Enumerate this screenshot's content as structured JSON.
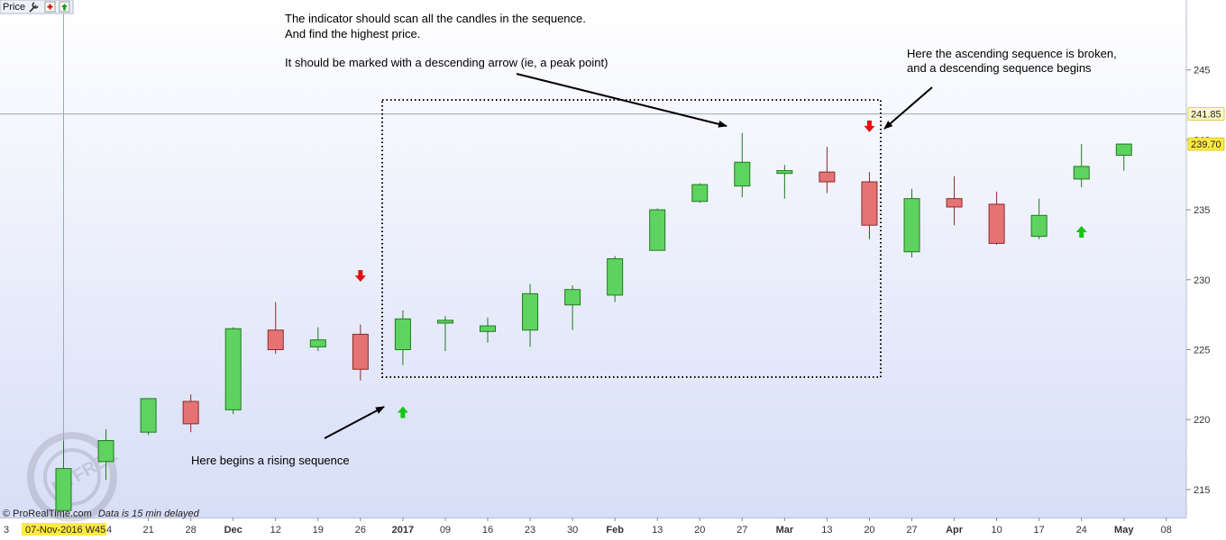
{
  "toolbar": {
    "label": "Price",
    "icons": [
      "wrench-icon",
      "add-red-icon",
      "add-green-icon"
    ]
  },
  "footer": {
    "copyright": "© ProRealTime.com",
    "delay_note": "Data is 15 min delayed",
    "crosshair_x_label": "07-Nov-2016 W45",
    "left_edge_tick": "3",
    "right_edge_tick": "4"
  },
  "chart_data": {
    "type": "candlestick",
    "ylim": [
      213,
      250
    ],
    "y_ticks": [
      215,
      220,
      225,
      230,
      235,
      240,
      245
    ],
    "x_ticks": [
      "21",
      "28",
      "Dec",
      "12",
      "19",
      "26",
      "2017",
      "09",
      "16",
      "23",
      "30",
      "Feb",
      "13",
      "20",
      "27",
      "Mar",
      "13",
      "20",
      "27",
      "Apr",
      "10",
      "17",
      "24",
      "May",
      "08"
    ],
    "bold_x_ticks": [
      "Dec",
      "2017",
      "Feb",
      "Mar",
      "Apr",
      "May"
    ],
    "price_labels": [
      {
        "value": 241.85,
        "text": "241.85",
        "color": "#fff9c4"
      },
      {
        "value": 239.7,
        "text": "239.70",
        "color": "#ffeb3b"
      }
    ],
    "crosshair": {
      "y": 241.85
    },
    "candles": [
      {
        "week": "07-Nov",
        "open": 213.5,
        "high": 218.5,
        "low": 213.0,
        "close": 216.5,
        "dir": "up"
      },
      {
        "week": "14-Nov",
        "open": 217.0,
        "high": 219.3,
        "low": 215.7,
        "close": 218.5,
        "dir": "up"
      },
      {
        "week": "21-Nov",
        "open": 219.1,
        "high": 221.5,
        "low": 218.9,
        "close": 221.5,
        "dir": "up"
      },
      {
        "week": "28-Nov",
        "open": 221.3,
        "high": 221.8,
        "low": 219.1,
        "close": 219.7,
        "dir": "down"
      },
      {
        "week": "05-Dec",
        "open": 220.7,
        "high": 226.6,
        "low": 220.4,
        "close": 226.5,
        "dir": "up"
      },
      {
        "week": "12-Dec",
        "open": 226.4,
        "high": 228.4,
        "low": 224.7,
        "close": 225.0,
        "dir": "down"
      },
      {
        "week": "19-Dec",
        "open": 225.2,
        "high": 226.6,
        "low": 224.9,
        "close": 225.7,
        "dir": "up"
      },
      {
        "week": "26-Dec",
        "open": 226.1,
        "high": 226.8,
        "low": 222.8,
        "close": 223.6,
        "dir": "down"
      },
      {
        "week": "02-Jan",
        "open": 225.0,
        "high": 227.8,
        "low": 223.9,
        "close": 227.2,
        "dir": "up"
      },
      {
        "week": "09-Jan",
        "open": 226.9,
        "high": 227.4,
        "low": 224.9,
        "close": 227.1,
        "dir": "up"
      },
      {
        "week": "16-Jan",
        "open": 226.3,
        "high": 227.3,
        "low": 225.5,
        "close": 226.7,
        "dir": "up"
      },
      {
        "week": "23-Jan",
        "open": 226.4,
        "high": 229.7,
        "low": 225.2,
        "close": 229.0,
        "dir": "up"
      },
      {
        "week": "30-Jan",
        "open": 228.2,
        "high": 229.6,
        "low": 226.4,
        "close": 229.3,
        "dir": "up"
      },
      {
        "week": "06-Feb",
        "open": 228.9,
        "high": 231.7,
        "low": 228.4,
        "close": 231.5,
        "dir": "up"
      },
      {
        "week": "13-Feb",
        "open": 232.1,
        "high": 235.1,
        "low": 232.1,
        "close": 235.0,
        "dir": "up"
      },
      {
        "week": "20-Feb",
        "open": 235.6,
        "high": 236.9,
        "low": 235.5,
        "close": 236.8,
        "dir": "up"
      },
      {
        "week": "27-Feb",
        "open": 236.7,
        "high": 240.5,
        "low": 235.9,
        "close": 238.4,
        "dir": "up"
      },
      {
        "week": "06-Mar",
        "open": 237.6,
        "high": 238.2,
        "low": 235.8,
        "close": 237.8,
        "dir": "up"
      },
      {
        "week": "13-Mar",
        "open": 237.7,
        "high": 239.5,
        "low": 236.2,
        "close": 237.0,
        "dir": "down"
      },
      {
        "week": "20-Mar",
        "open": 237.0,
        "high": 237.7,
        "low": 232.9,
        "close": 233.9,
        "dir": "down"
      },
      {
        "week": "27-Mar",
        "open": 232.0,
        "high": 236.5,
        "low": 231.6,
        "close": 235.8,
        "dir": "up"
      },
      {
        "week": "03-Apr",
        "open": 235.8,
        "high": 237.4,
        "low": 233.9,
        "close": 235.2,
        "dir": "down"
      },
      {
        "week": "10-Apr",
        "open": 235.4,
        "high": 236.3,
        "low": 232.5,
        "close": 232.6,
        "dir": "down"
      },
      {
        "week": "17-Apr",
        "open": 233.1,
        "high": 235.8,
        "low": 232.9,
        "close": 234.6,
        "dir": "up"
      },
      {
        "week": "24-Apr",
        "open": 237.2,
        "high": 239.7,
        "low": 236.6,
        "close": 238.1,
        "dir": "up"
      },
      {
        "week": "01-May",
        "open": 238.9,
        "high": 239.7,
        "low": 237.8,
        "close": 239.7,
        "dir": "up"
      }
    ],
    "signal_arrows": [
      {
        "week": "26-Dec",
        "price": 230.3,
        "dir": "down"
      },
      {
        "week": "02-Jan",
        "price": 220.5,
        "dir": "up"
      },
      {
        "week": "20-Mar",
        "price": 241.0,
        "dir": "down"
      },
      {
        "week": "24-Apr",
        "price": 233.4,
        "dir": "up"
      }
    ],
    "annotations": [
      {
        "lines": [
          "The indicator should scan all the candles in the sequence.",
          "And find the highest price.",
          "",
          "It should be marked with a descending arrow (ie, a peak point)"
        ]
      },
      {
        "lines": [
          "Here the ascending sequence is broken,",
          "and a descending sequence begins"
        ]
      },
      {
        "lines": [
          "Here begins a rising sequence"
        ]
      }
    ]
  },
  "colors": {
    "bull": "#5fd35f",
    "bear": "#e57373",
    "arrow_up": "#18c418",
    "arrow_down": "#e01010",
    "axis_bg": "#ffffff"
  }
}
